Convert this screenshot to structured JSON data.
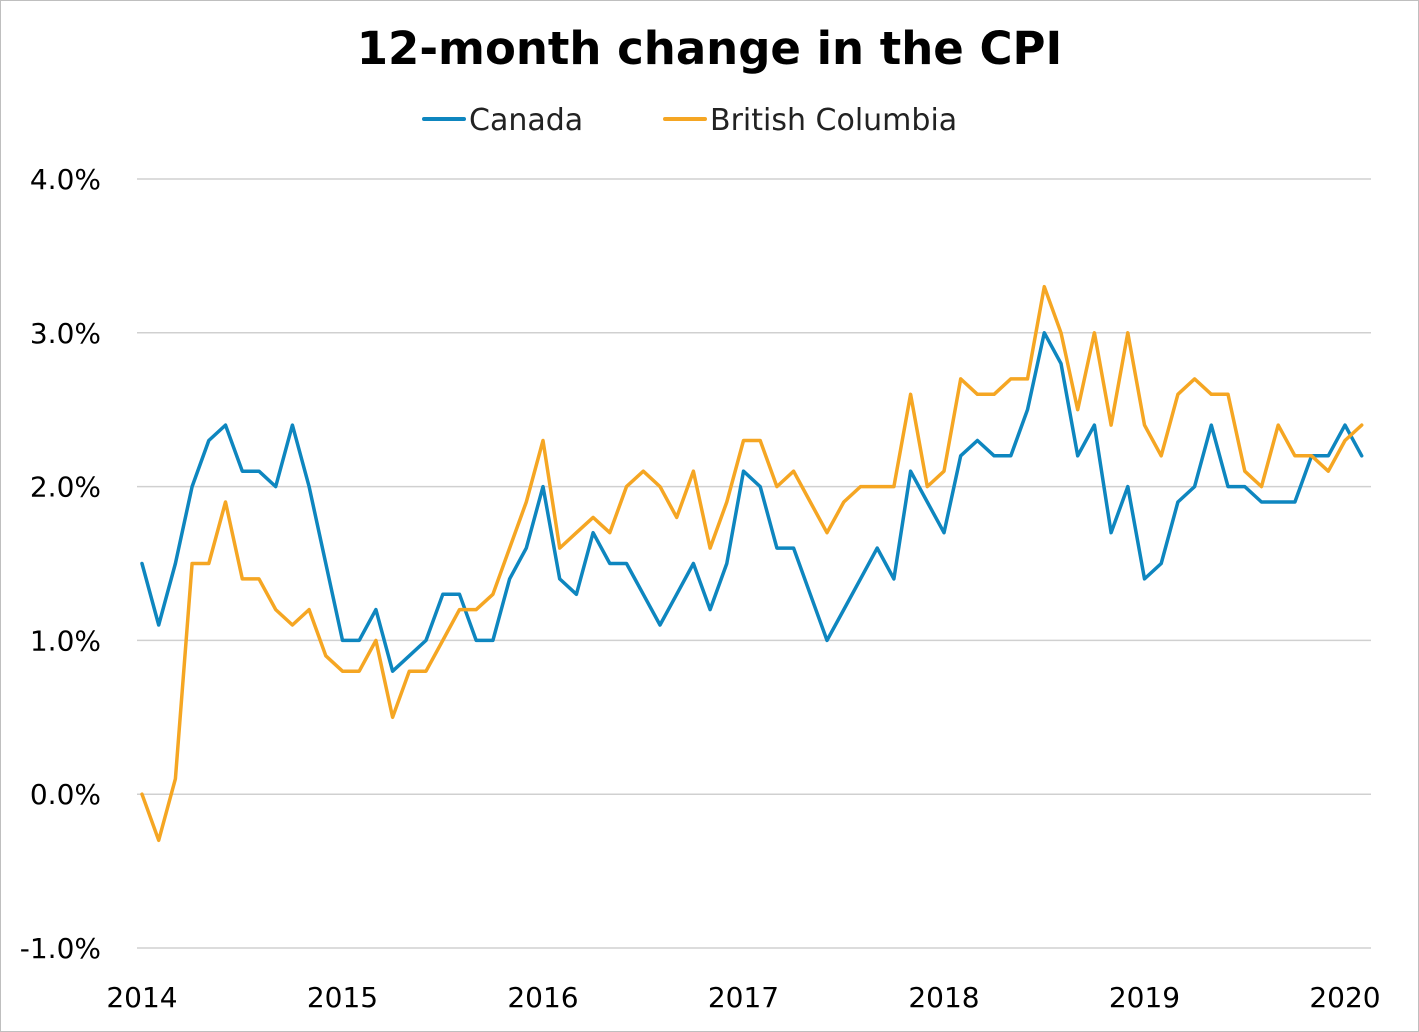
{
  "chart_data": {
    "type": "line",
    "title": "12-month change in the CPI",
    "xlabel": "",
    "ylabel": "",
    "ylim": [
      -1.0,
      4.0
    ],
    "y_ticks": [
      "-1.0%",
      "0.0%",
      "1.0%",
      "2.0%",
      "3.0%",
      "4.0%"
    ],
    "y_tick_values": [
      -1.0,
      0.0,
      1.0,
      2.0,
      3.0,
      4.0
    ],
    "x_ticks": [
      "2014",
      "2015",
      "2016",
      "2017",
      "2018",
      "2019",
      "2020"
    ],
    "x_tick_values": [
      2014,
      2015,
      2016,
      2017,
      2018,
      2019,
      2020
    ],
    "x_unit": "month",
    "grid": "horizontal",
    "legend_position": "top-center",
    "x": [
      "2014-01",
      "2014-02",
      "2014-03",
      "2014-04",
      "2014-05",
      "2014-06",
      "2014-07",
      "2014-08",
      "2014-09",
      "2014-10",
      "2014-11",
      "2014-12",
      "2015-01",
      "2015-02",
      "2015-03",
      "2015-04",
      "2015-05",
      "2015-06",
      "2015-07",
      "2015-08",
      "2015-09",
      "2015-10",
      "2015-11",
      "2015-12",
      "2016-01",
      "2016-02",
      "2016-03",
      "2016-04",
      "2016-05",
      "2016-06",
      "2016-07",
      "2016-08",
      "2016-09",
      "2016-10",
      "2016-11",
      "2016-12",
      "2017-01",
      "2017-02",
      "2017-03",
      "2017-04",
      "2017-05",
      "2017-06",
      "2017-07",
      "2017-08",
      "2017-09",
      "2017-10",
      "2017-11",
      "2017-12",
      "2018-01",
      "2018-02",
      "2018-03",
      "2018-04",
      "2018-05",
      "2018-06",
      "2018-07",
      "2018-08",
      "2018-09",
      "2018-10",
      "2018-11",
      "2018-12",
      "2019-01",
      "2019-02",
      "2019-03",
      "2019-04",
      "2019-05",
      "2019-06",
      "2019-07",
      "2019-08",
      "2019-09",
      "2019-10",
      "2019-11",
      "2019-12",
      "2020-01",
      "2020-02"
    ],
    "series": [
      {
        "name": "Canada",
        "color": "#0e86bf",
        "values": [
          1.5,
          1.1,
          1.5,
          2.0,
          2.3,
          2.4,
          2.1,
          2.1,
          2.0,
          2.4,
          2.0,
          1.5,
          1.0,
          1.0,
          1.2,
          0.8,
          0.9,
          1.0,
          1.3,
          1.3,
          1.0,
          1.0,
          1.4,
          1.6,
          2.0,
          1.4,
          1.3,
          1.7,
          1.5,
          1.5,
          1.3,
          1.1,
          1.3,
          1.5,
          1.2,
          1.5,
          2.1,
          2.0,
          1.6,
          1.6,
          1.3,
          1.0,
          1.2,
          1.4,
          1.6,
          1.4,
          2.1,
          1.9,
          1.7,
          2.2,
          2.3,
          2.2,
          2.2,
          2.5,
          3.0,
          2.8,
          2.2,
          2.4,
          1.7,
          2.0,
          1.4,
          1.5,
          1.9,
          2.0,
          2.4,
          2.0,
          2.0,
          1.9,
          1.9,
          1.9,
          2.2,
          2.2,
          2.4,
          2.2
        ]
      },
      {
        "name": "British Columbia",
        "color": "#f5a623",
        "values": [
          0.0,
          -0.3,
          0.1,
          1.5,
          1.5,
          1.9,
          1.4,
          1.4,
          1.2,
          1.1,
          1.2,
          0.9,
          0.8,
          0.8,
          1.0,
          0.5,
          0.8,
          0.8,
          1.0,
          1.2,
          1.2,
          1.3,
          1.6,
          1.9,
          2.3,
          1.6,
          1.7,
          1.8,
          1.7,
          2.0,
          2.1,
          2.0,
          1.8,
          2.1,
          1.6,
          1.9,
          2.3,
          2.3,
          2.0,
          2.1,
          1.9,
          1.7,
          1.9,
          2.0,
          2.0,
          2.0,
          2.6,
          2.0,
          2.1,
          2.7,
          2.6,
          2.6,
          2.7,
          2.7,
          3.3,
          3.0,
          2.5,
          3.0,
          2.4,
          3.0,
          2.4,
          2.2,
          2.6,
          2.7,
          2.6,
          2.6,
          2.1,
          2.0,
          2.4,
          2.2,
          2.2,
          2.1,
          2.3,
          2.4
        ]
      }
    ]
  }
}
